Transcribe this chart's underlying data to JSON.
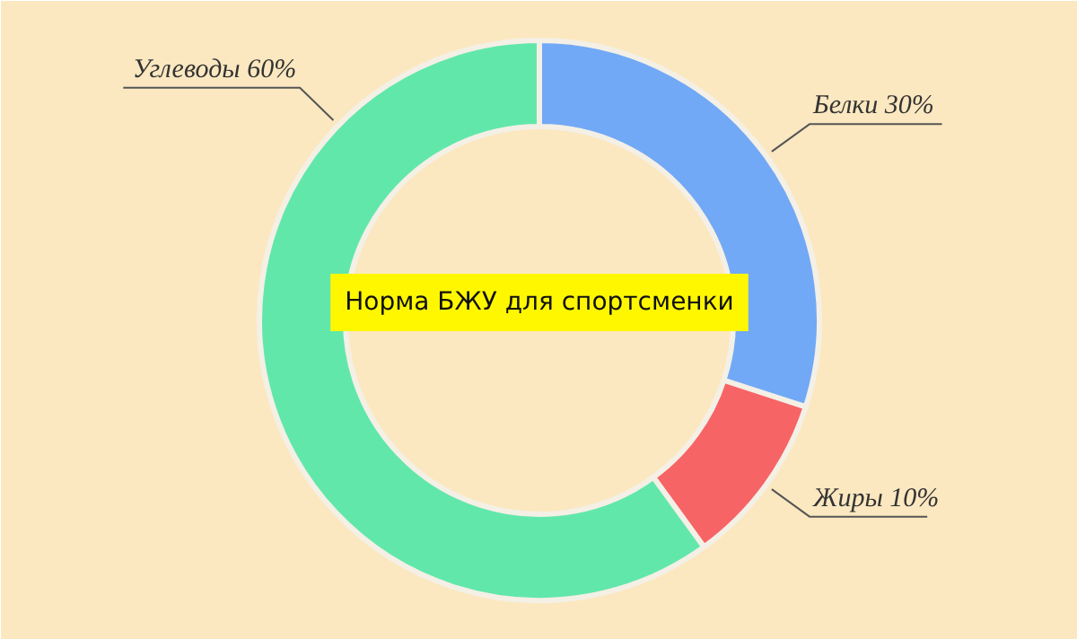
{
  "chart_data": {
    "type": "donut",
    "title": "Норма БЖУ для спортсменки",
    "categories": [
      "Белки",
      "Жиры",
      "Углеводы"
    ],
    "values": [
      30,
      10,
      60
    ],
    "value_labels": [
      "30%",
      "10%",
      "60%"
    ],
    "colors": [
      "#72a9f6",
      "#f76466",
      "#62e7ab"
    ]
  }
}
